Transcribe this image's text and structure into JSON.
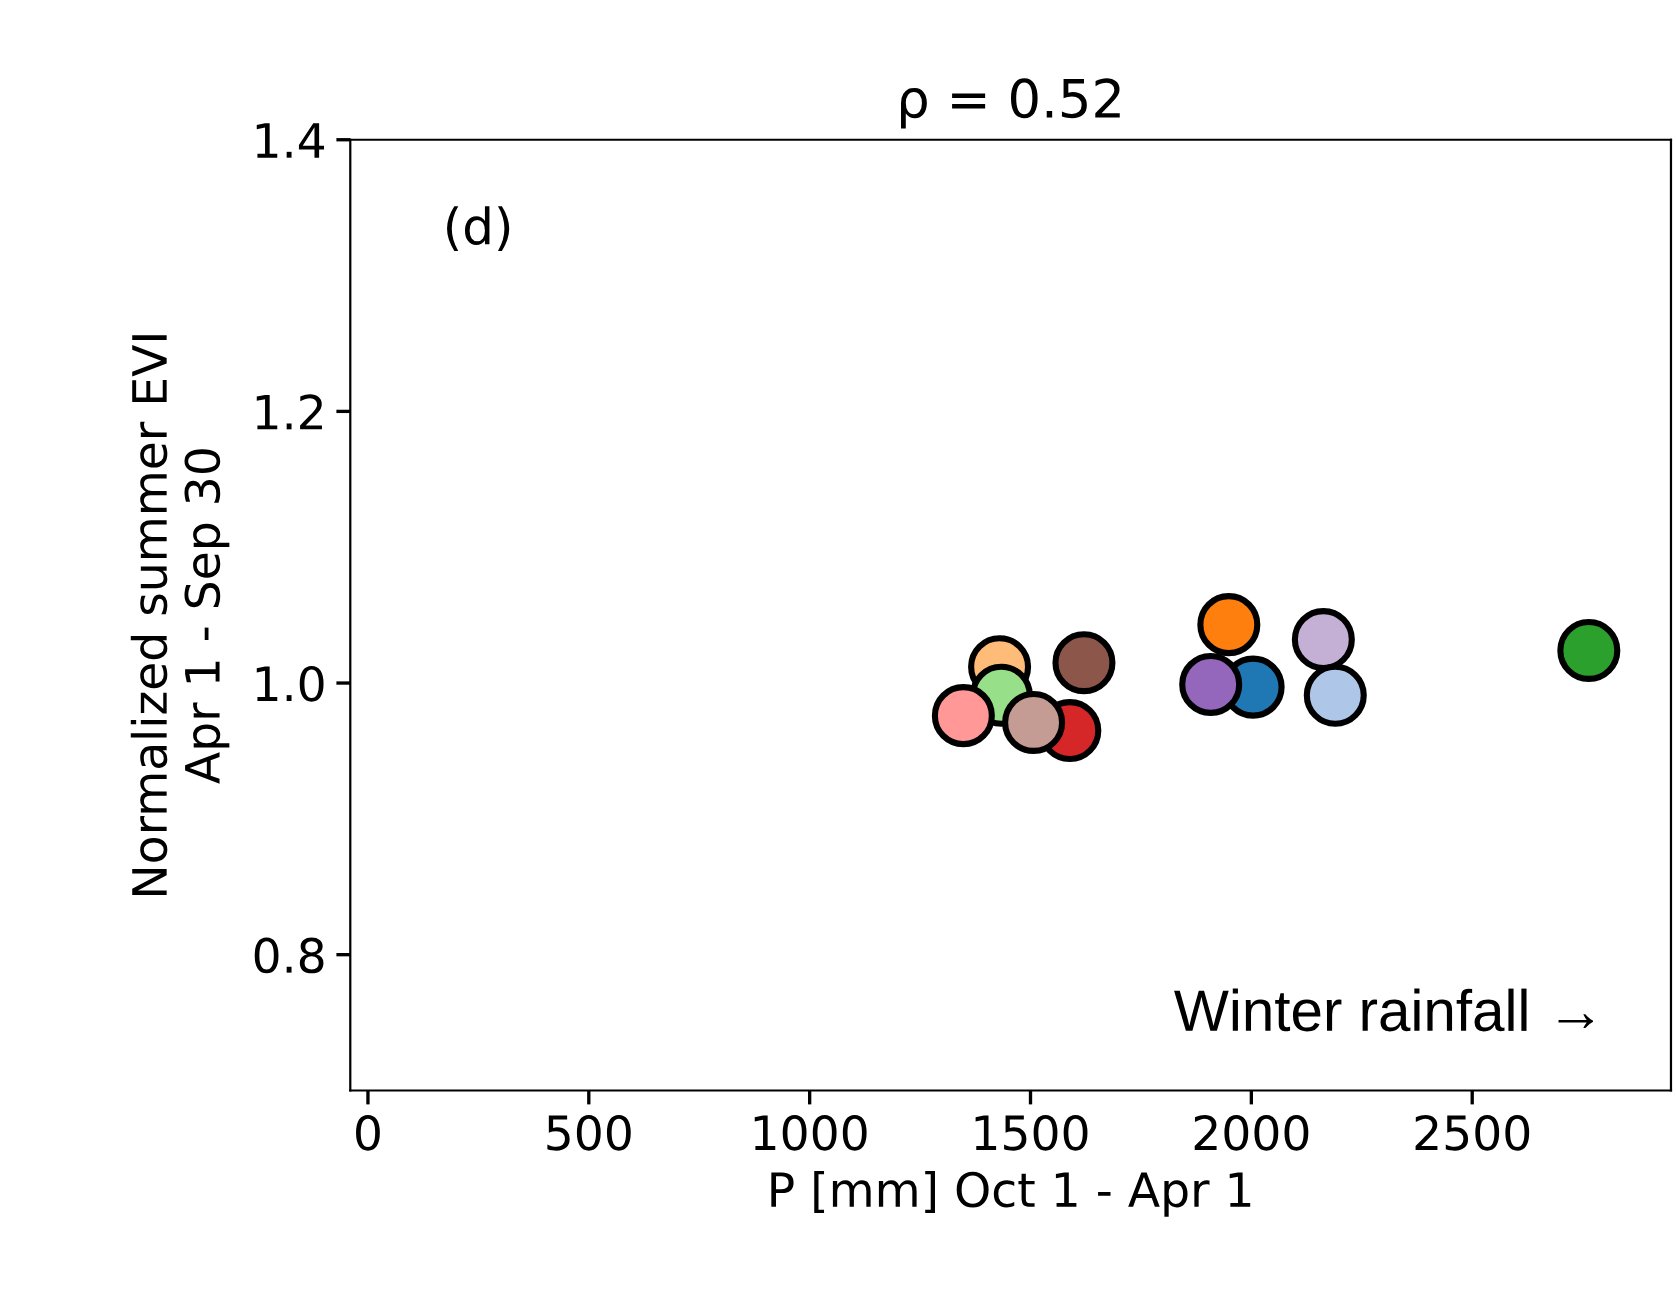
{
  "chart_data": {
    "type": "scatter",
    "title": "ρ = 0.52",
    "xlabel": "P [mm] Oct 1 - Apr 1",
    "ylabel": "Normalized summer EVI\nApr 1 - Sep 30",
    "x": [
      1430,
      1434,
      1348,
      1589,
      1507,
      1621,
      1949,
      2004,
      1908,
      2163,
      2190,
      2764
    ],
    "values": [
      1.012,
      0.991,
      0.976,
      0.965,
      0.971,
      1.015,
      1.043,
      0.997,
      0.999,
      1.032,
      0.991,
      1.024
    ],
    "colors": [
      "#ffbb78",
      "#98df8a",
      "#ff9896",
      "#d62728",
      "#c49c94",
      "#8c564b",
      "#ff7f0e",
      "#1f77b4",
      "#9467bd",
      "#c5b0d5",
      "#aec7e8",
      "#2ca02c"
    ],
    "marker": "circle",
    "xlim": [
      -40,
      2950
    ],
    "xticks": [
      0,
      500,
      1000,
      1500,
      2000,
      2500
    ],
    "ylim": [
      0.7,
      1.4
    ],
    "yticks": [
      0.8,
      {
        "value": 1.0,
        "label": "1.0"
      },
      1.2,
      1.4
    ],
    "annotations": [
      "(d)",
      "Winter rainfall →"
    ],
    "grid": false,
    "legend": false
  }
}
